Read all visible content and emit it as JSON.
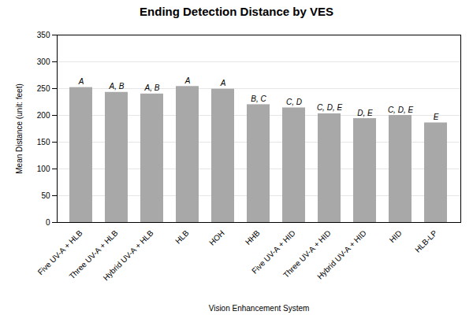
{
  "chart_data": {
    "type": "bar",
    "title": "Ending Detection Distance by VES",
    "xlabel": "Vision Enhancement System",
    "ylabel": "Mean Distance (unit: feet)",
    "categories": [
      "Five UV-A + HLB",
      "Three UV-A + HLB",
      "Hybrid UV-A + HLB",
      "HLB",
      "HOH",
      "HHB",
      "Five UV-A + HID",
      "Three UV-A + HID",
      "Hybrid UV-A + HID",
      "HID",
      "HLB-LP"
    ],
    "values": [
      252,
      243,
      240,
      254,
      249,
      220,
      214,
      203,
      194,
      200,
      186
    ],
    "annotations": [
      "A",
      "A, B",
      "A, B",
      "A",
      "A",
      "B, C",
      "C, D",
      "C, D, E",
      "D, E",
      "C, D, E",
      "E"
    ],
    "color": "#a8a8a8",
    "ylim": [
      0,
      350
    ],
    "yticks": [
      0,
      50,
      100,
      150,
      200,
      250,
      300,
      350
    ],
    "grid": true
  }
}
